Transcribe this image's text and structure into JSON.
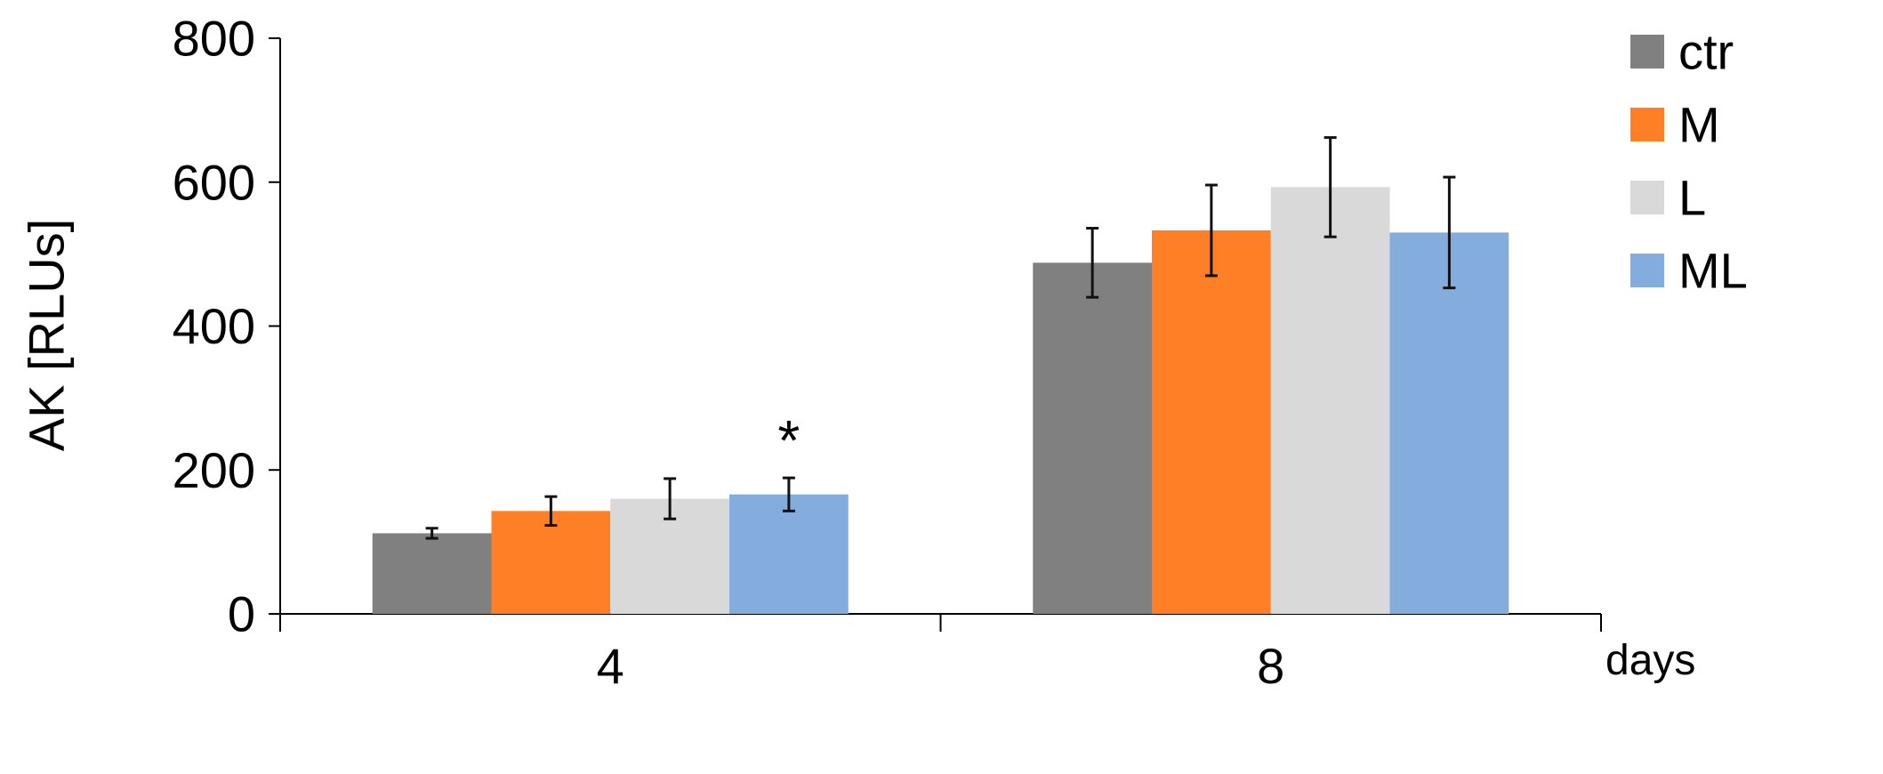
{
  "chart_data": {
    "type": "bar",
    "categories": [
      "4",
      "8"
    ],
    "x_axis_unit_label": "days",
    "ylabel": "AK [RLUs]",
    "ylim": [
      0,
      800
    ],
    "yticks": [
      0,
      200,
      400,
      600,
      800
    ],
    "grid": false,
    "legend_position": "right",
    "series": [
      {
        "name": "ctr",
        "color": "#808080",
        "values": [
          112,
          488
        ],
        "errors": [
          7,
          48
        ]
      },
      {
        "name": "M",
        "color": "#FF7F27",
        "values": [
          143,
          533
        ],
        "errors": [
          20,
          63
        ]
      },
      {
        "name": "L",
        "color": "#D9D9D9",
        "values": [
          160,
          593
        ],
        "errors": [
          28,
          69
        ]
      },
      {
        "name": "ML",
        "color": "#84ACDD",
        "values": [
          166,
          530
        ],
        "errors": [
          23,
          77
        ]
      }
    ],
    "annotations": [
      {
        "text": "*",
        "category": "4",
        "series": "ML"
      }
    ]
  }
}
